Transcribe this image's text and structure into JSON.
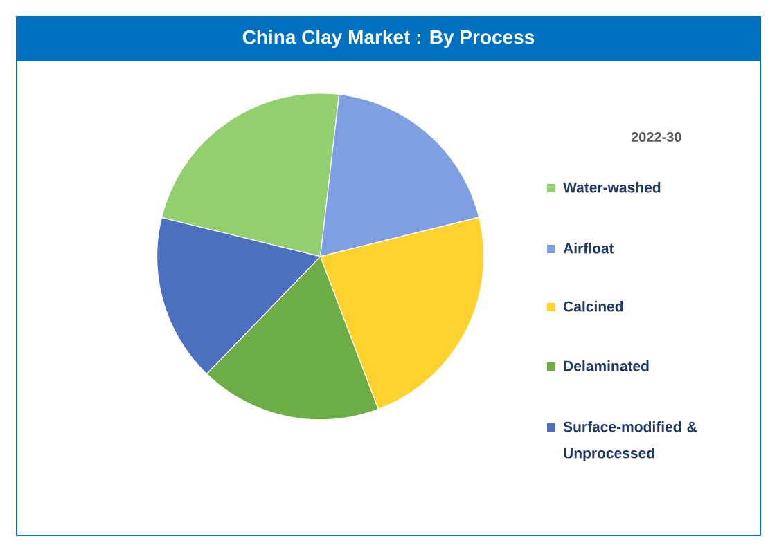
{
  "chart_data": {
    "type": "pie",
    "title": "China Clay Market : By Process",
    "legend_title": "2022-30",
    "legend": "right",
    "categories": [
      "Water-washed",
      "Airfloat",
      "Calcined",
      "Delaminated",
      "Surface-modified & Unprocessed"
    ],
    "values": [
      23.0,
      19.3,
      23.1,
      18.0,
      16.6
    ],
    "colors": [
      "#92cf6e",
      "#7f9fe3",
      "#ffd22e",
      "#6cae45",
      "#4d6fc0"
    ]
  }
}
